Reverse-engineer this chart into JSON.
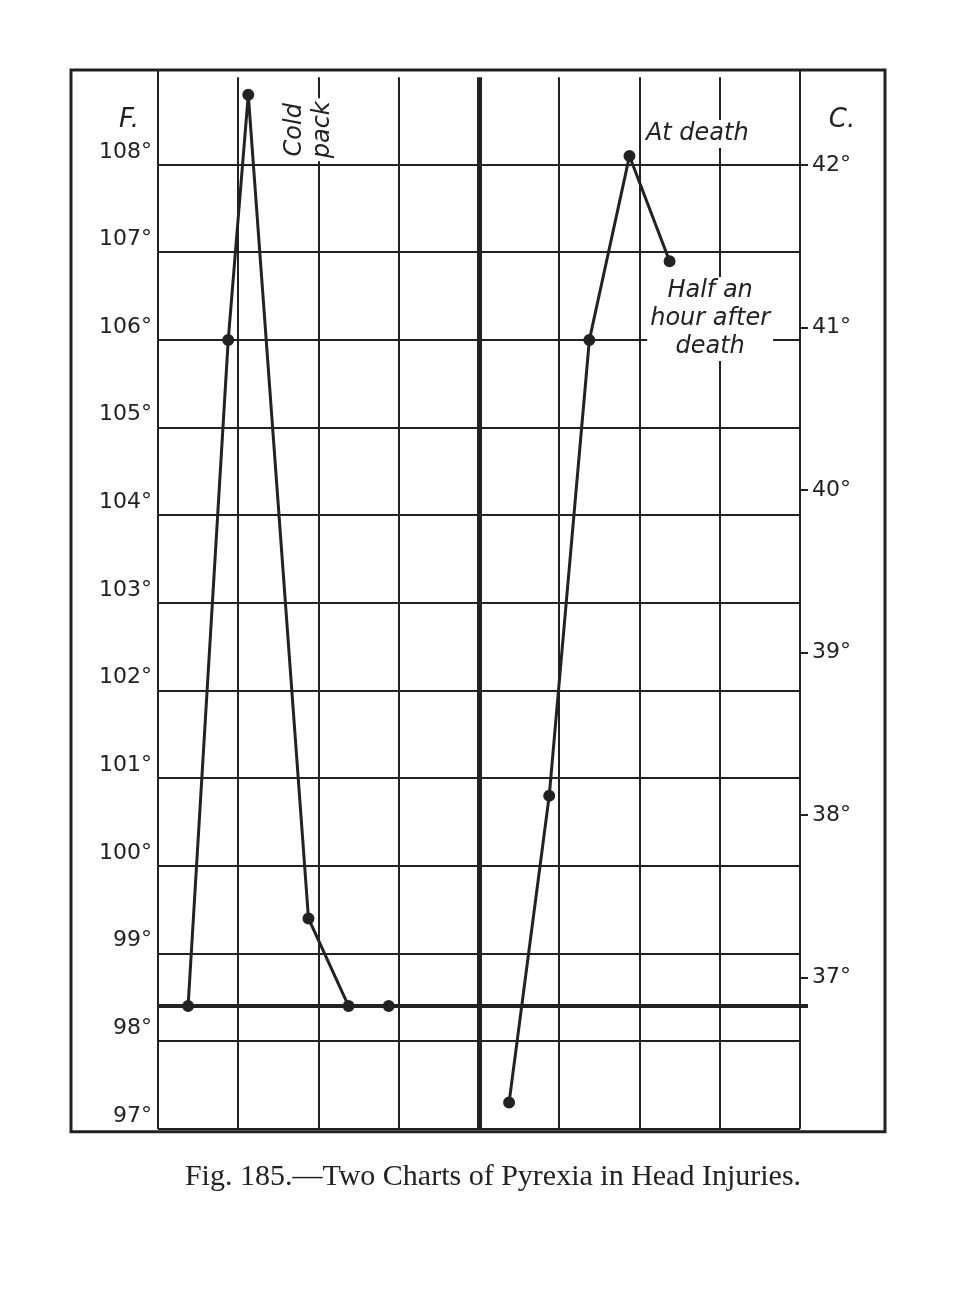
{
  "chart_data": {
    "type": "line",
    "ylabel": "F.",
    "y2label": "C.",
    "categories": [
      null,
      null,
      null,
      null,
      null,
      null,
      null,
      null,
      null,
      null,
      null,
      null,
      null,
      null,
      null,
      null,
      null,
      null,
      null,
      null,
      null,
      null,
      null,
      null,
      null,
      null,
      null,
      null,
      null,
      null,
      null,
      null
    ],
    "ylim": [
      97,
      109
    ],
    "yticks": [
      {
        "value": 97,
        "label": "97°"
      },
      {
        "value": 98,
        "label": "98°"
      },
      {
        "value": 99,
        "label": "99°"
      },
      {
        "value": 100,
        "label": "100°"
      },
      {
        "value": 101,
        "label": "101°"
      },
      {
        "value": 102,
        "label": "102°"
      },
      {
        "value": 103,
        "label": "103°"
      },
      {
        "value": 104,
        "label": "104°"
      },
      {
        "value": 105,
        "label": "105°"
      },
      {
        "value": 106,
        "label": "106°"
      },
      {
        "value": 107,
        "label": "107°"
      },
      {
        "value": 108,
        "label": "108°"
      }
    ],
    "y2lim": [
      36.07,
      42.54
    ],
    "y2ticks": [
      {
        "value": 37,
        "label": "37°"
      },
      {
        "value": 38,
        "label": "38°"
      },
      {
        "value": 39,
        "label": "39°"
      },
      {
        "value": 40,
        "label": "40°"
      },
      {
        "value": 41,
        "label": "41°"
      },
      {
        "value": 42,
        "label": "42°"
      }
    ],
    "series": [
      {
        "color": "#222222",
        "values": [
          null,
          98.4,
          null,
          106.0,
          108.8,
          null,
          null,
          99.4,
          null,
          98.4,
          null,
          98.4,
          null,
          null,
          null,
          null,
          null,
          null,
          null,
          null,
          null,
          null,
          null,
          null,
          null,
          null,
          null,
          null,
          null,
          null,
          null,
          null
        ]
      },
      {
        "color": "#222222",
        "values": [
          null,
          null,
          null,
          null,
          null,
          null,
          null,
          null,
          null,
          null,
          null,
          null,
          null,
          null,
          null,
          null,
          null,
          97.3,
          null,
          100.8,
          null,
          106.0,
          null,
          108.1,
          null,
          106.9,
          null,
          null,
          null,
          null,
          null,
          null
        ]
      }
    ],
    "ref_lines": [
      {
        "axis": "y",
        "value": 98.4,
        "color": "#222222"
      }
    ],
    "annotations": [
      "Cold pack",
      "At death",
      "Half an hour after death",
      "Fig. 185.—Two Charts of Pyrexia in Head Injuries."
    ],
    "grid": true,
    "legend": false,
    "marker": "circle",
    "line_style": "solid"
  }
}
